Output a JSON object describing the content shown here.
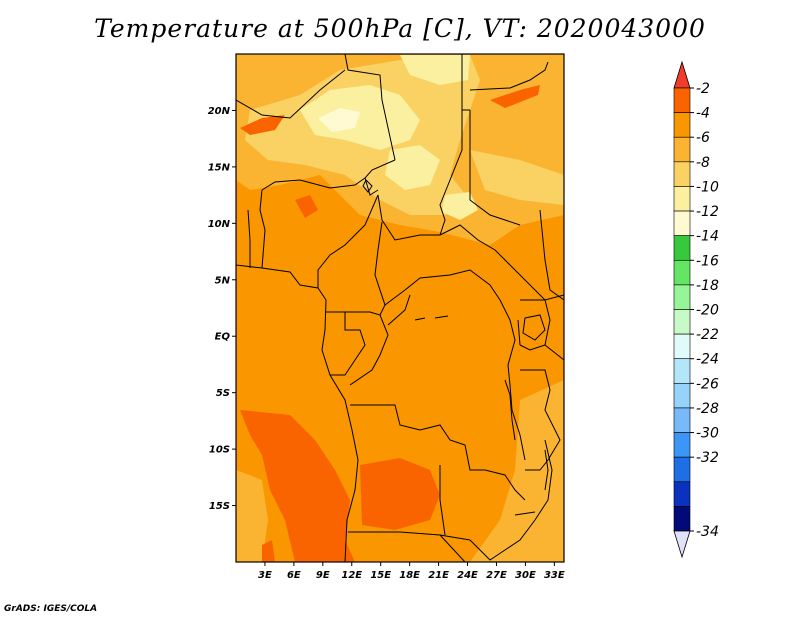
{
  "title": "Temperature at 500hPa [C], VT: 2020043000",
  "credit": "GrADS: IGES/COLA",
  "map": {
    "region": "Central Africa",
    "lat_range": [
      -20,
      25
    ],
    "lon_range": [
      0,
      34
    ],
    "lat_ticks": [
      {
        "lat": 20,
        "label": "20N"
      },
      {
        "lat": 15,
        "label": "15N"
      },
      {
        "lat": 10,
        "label": "10N"
      },
      {
        "lat": 5,
        "label": "5N"
      },
      {
        "lat": 0,
        "label": "EQ"
      },
      {
        "lat": -5,
        "label": "5S"
      },
      {
        "lat": -10,
        "label": "10S"
      },
      {
        "lat": -15,
        "label": "15S"
      }
    ],
    "lon_ticks": [
      {
        "lon": 3,
        "label": "3E"
      },
      {
        "lon": 6,
        "label": "6E"
      },
      {
        "lon": 9,
        "label": "9E"
      },
      {
        "lon": 12,
        "label": "12E"
      },
      {
        "lon": 15,
        "label": "15E"
      },
      {
        "lon": 18,
        "label": "18E"
      },
      {
        "lon": 21,
        "label": "21E"
      },
      {
        "lon": 24,
        "label": "24E"
      },
      {
        "lon": 27,
        "label": "27E"
      },
      {
        "lon": 30,
        "label": "30E"
      },
      {
        "lon": 33,
        "label": "33E"
      }
    ]
  },
  "colorbar": {
    "levels": [
      {
        "label": "-2",
        "color": "#fa6400"
      },
      {
        "label": "-4",
        "color": "#fa9600"
      },
      {
        "label": "-6",
        "color": "#fab432"
      },
      {
        "label": "-8",
        "color": "#fad264"
      },
      {
        "label": "-10",
        "color": "#faf0a0"
      },
      {
        "label": "-12",
        "color": "#fffad2"
      },
      {
        "label": "-14",
        "color": "#37c83c"
      },
      {
        "label": "-16",
        "color": "#64e664"
      },
      {
        "label": "-18",
        "color": "#96f596"
      },
      {
        "label": "-20",
        "color": "#c8fac8"
      },
      {
        "label": "-22",
        "color": "#e1fafa"
      },
      {
        "label": "-24",
        "color": "#b4e6fa"
      },
      {
        "label": "-26",
        "color": "#96d2fa"
      },
      {
        "label": "-28",
        "color": "#78b9fa"
      },
      {
        "label": "-30",
        "color": "#3c96f5"
      },
      {
        "label": "-32",
        "color": "#1e6ee6"
      },
      {
        "label": "-34",
        "color": "#1450d2"
      }
    ],
    "top_arrow_color": "#f03c28",
    "bottom_arrow_color": "#e1e1fa",
    "extra_band_colors": [
      "#0a32be",
      "#000a78"
    ]
  },
  "palette": {
    "deep_orange": "#fa6400",
    "orange": "#fa9600",
    "light_orange": "#fab432",
    "yellow_orange": "#fad264",
    "pale_yellow": "#faf0a0",
    "cream": "#fffad2"
  }
}
